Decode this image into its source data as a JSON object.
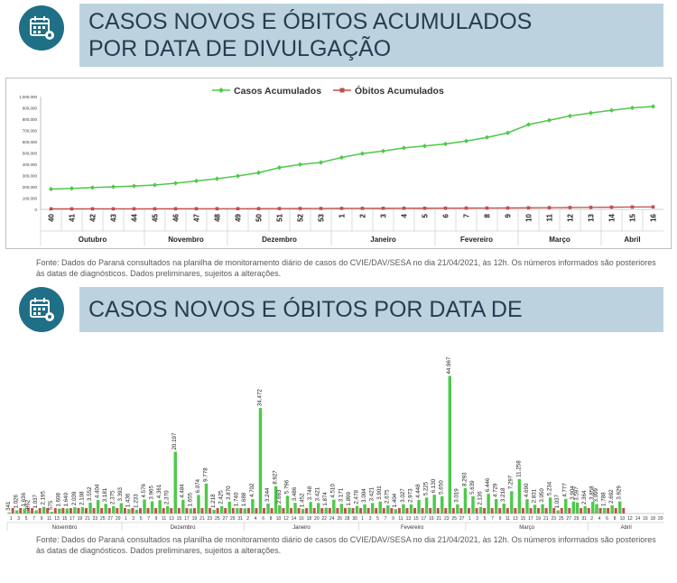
{
  "section1": {
    "title_line1": "CASOS NOVOS E ÓBITOS ACUMULADOS",
    "title_line2": "POR DATA DE DIVULGAÇÃO",
    "source_note": "Fonte: Dados do Paraná consultados na planilha de monitoramento diário de casos do CVIE/DAV/SESA no dia 21/04/2021, às 12h. Os números informados são posteriores às datas de diagnósticos. Dados preliminares, sujeitos a alterações."
  },
  "section2": {
    "title": "CASOS NOVOS E ÓBITOS POR DATA DE DIVULGAÇÃO",
    "source_note": "Fonte: Dados do Paraná consultados na planilha de monitoramento diário de casos do CVIE/DAV/SESA no dia 21/04/2021, às 12h. Os números informados são posteriores às datas de diagnósticos. Dados preliminares, sujeitos a alterações."
  },
  "colors": {
    "cases": "#4ec94a",
    "deaths": "#c0504d",
    "title_bg": "#bcd3df",
    "icon_bg": "#1f6f86"
  },
  "icons": [
    "calendar-virus-icon",
    "calendar-virus-icon"
  ],
  "chart_data": [
    {
      "type": "line",
      "x": [
        "40",
        "41",
        "42",
        "43",
        "44",
        "45",
        "46",
        "47",
        "48",
        "49",
        "50",
        "51",
        "52",
        "53",
        "1",
        "2",
        "3",
        "4",
        "5",
        "6",
        "7",
        "8",
        "9",
        "10",
        "11",
        "12",
        "13",
        "14",
        "15",
        "16"
      ],
      "groups": [
        {
          "label": "Outubro",
          "span": [
            0,
            4
          ]
        },
        {
          "label": "Novembro",
          "span": [
            5,
            8
          ]
        },
        {
          "label": "Dezembro",
          "span": [
            9,
            13
          ]
        },
        {
          "label": "Janeiro",
          "span": [
            14,
            18
          ]
        },
        {
          "label": "Fevereiro",
          "span": [
            19,
            22
          ]
        },
        {
          "label": "Março",
          "span": [
            23,
            26
          ]
        },
        {
          "label": "Abril",
          "span": [
            27,
            29
          ]
        }
      ],
      "series": [
        {
          "name": "Casos Acumulados",
          "values": [
            180000,
            186000,
            193000,
            200000,
            207000,
            216000,
            232000,
            252000,
            272000,
            296000,
            325000,
            370000,
            398000,
            416000,
            460000,
            495000,
            517000,
            545000,
            562000,
            580000,
            606000,
            638000,
            678000,
            752000,
            790000,
            828000,
            855000,
            878000,
            900000,
            912000
          ]
        },
        {
          "name": "Óbitos Acumulados",
          "values": [
            4400,
            4600,
            4800,
            5000,
            5100,
            5300,
            5500,
            5800,
            6000,
            6300,
            6700,
            7200,
            7700,
            8100,
            8700,
            9200,
            9600,
            10100,
            10500,
            10900,
            11400,
            11900,
            12500,
            13600,
            15100,
            16600,
            18100,
            19600,
            21000,
            22000
          ]
        }
      ],
      "yticks": [
        "0",
        "100,000",
        "200,000",
        "300,000",
        "400,000",
        "500,000",
        "600,000",
        "700,000",
        "800,000",
        "900,000",
        "1,000,000"
      ],
      "ylim": [
        0,
        1000000
      ],
      "legend": "top-center",
      "grid": false
    },
    {
      "type": "bar",
      "labeled_cases": [
        {
          "i": 0,
          "value": "341"
        },
        {
          "i": 2,
          "value": "1.026"
        },
        {
          "i": 4,
          "value": "1.636"
        },
        {
          "i": 5,
          "value": "862"
        },
        {
          "i": 7,
          "value": "1.037"
        },
        {
          "i": 9,
          "value": "2.195"
        },
        {
          "i": 11,
          "value": "575"
        },
        {
          "i": 13,
          "value": "1.608"
        },
        {
          "i": 15,
          "value": "1.640"
        },
        {
          "i": 17,
          "value": "2.039"
        },
        {
          "i": 19,
          "value": "2.108"
        },
        {
          "i": 21,
          "value": "3.552"
        },
        {
          "i": 23,
          "value": "4.404"
        },
        {
          "i": 25,
          "value": "3.181"
        },
        {
          "i": 27,
          "value": "2.375"
        },
        {
          "i": 29,
          "value": "3.393"
        },
        {
          "i": 31,
          "value": "1.436"
        },
        {
          "i": 33,
          "value": "1.233"
        },
        {
          "i": 35,
          "value": "4.576"
        },
        {
          "i": 37,
          "value": "3.965"
        },
        {
          "i": 39,
          "value": "4.361"
        },
        {
          "i": 41,
          "value": "2.370"
        },
        {
          "i": 43,
          "value": "20.197"
        },
        {
          "i": 45,
          "value": "4.484"
        },
        {
          "i": 47,
          "value": "1.655"
        },
        {
          "i": 49,
          "value": "6.074"
        },
        {
          "i": 51,
          "value": "9.778"
        },
        {
          "i": 53,
          "value": "1.218"
        },
        {
          "i": 55,
          "value": "2.425"
        },
        {
          "i": 57,
          "value": "3.870"
        },
        {
          "i": 59,
          "value": "1.740"
        },
        {
          "i": 61,
          "value": "1.688"
        },
        {
          "i": 63,
          "value": "4.702"
        },
        {
          "i": 65,
          "value": "34.472"
        },
        {
          "i": 67,
          "value": "3.244"
        },
        {
          "i": 69,
          "value": "8.927"
        },
        {
          "i": 70,
          "value": "2.663"
        },
        {
          "i": 72,
          "value": "5.796"
        },
        {
          "i": 74,
          "value": "3.486"
        },
        {
          "i": 76,
          "value": "1.452"
        },
        {
          "i": 78,
          "value": "3.748"
        },
        {
          "i": 80,
          "value": "3.421"
        },
        {
          "i": 82,
          "value": "1.874"
        },
        {
          "i": 84,
          "value": "4.510"
        },
        {
          "i": 86,
          "value": "3.171"
        },
        {
          "i": 88,
          "value": "1.899"
        },
        {
          "i": 90,
          "value": "2.478"
        },
        {
          "i": 92,
          "value": "3.004"
        },
        {
          "i": 94,
          "value": "3.421"
        },
        {
          "i": 96,
          "value": "3.901"
        },
        {
          "i": 98,
          "value": "2.675"
        },
        {
          "i": 100,
          "value": "1.404"
        },
        {
          "i": 102,
          "value": "3.027"
        },
        {
          "i": 104,
          "value": "2.973"
        },
        {
          "i": 106,
          "value": "4.448"
        },
        {
          "i": 108,
          "value": "5.225"
        },
        {
          "i": 110,
          "value": "6.130"
        },
        {
          "i": 112,
          "value": "5.650"
        },
        {
          "i": 114,
          "value": "44.967"
        },
        {
          "i": 116,
          "value": "3.019"
        },
        {
          "i": 118,
          "value": "8.293"
        },
        {
          "i": 120,
          "value": "5.639"
        },
        {
          "i": 122,
          "value": "2.136"
        },
        {
          "i": 124,
          "value": "6.446"
        },
        {
          "i": 126,
          "value": "4.729"
        },
        {
          "i": 128,
          "value": "3.218"
        },
        {
          "i": 130,
          "value": "7.297"
        },
        {
          "i": 132,
          "value": "11.258"
        },
        {
          "i": 134,
          "value": "4.690"
        },
        {
          "i": 136,
          "value": "2.831"
        },
        {
          "i": 138,
          "value": "3.050"
        },
        {
          "i": 140,
          "value": "5.234"
        },
        {
          "i": 142,
          "value": "1.037"
        },
        {
          "i": 144,
          "value": "4.777"
        },
        {
          "i": 146,
          "value": "3.904"
        },
        {
          "i": 147,
          "value": "3.597"
        },
        {
          "i": 149,
          "value": "2.364"
        },
        {
          "i": 151,
          "value": "3.858"
        },
        {
          "i": 152,
          "value": "3.099"
        },
        {
          "i": 154,
          "value": "1.788"
        },
        {
          "i": 156,
          "value": "2.692"
        },
        {
          "i": 158,
          "value": "3.929"
        }
      ],
      "tick_labels": [
        "1",
        "3",
        "5",
        "7",
        "9",
        "11",
        "13",
        "15",
        "17",
        "19",
        "21",
        "23",
        "25",
        "27",
        "29",
        "1",
        "3",
        "5",
        "7",
        "9",
        "11",
        "13",
        "15",
        "17",
        "19",
        "21",
        "23",
        "25",
        "27",
        "29",
        "31",
        "2",
        "4",
        "6",
        "8",
        "10",
        "12",
        "14",
        "16",
        "18",
        "20",
        "22",
        "24",
        "26",
        "28",
        "30",
        "1",
        "3",
        "5",
        "7",
        "9",
        "11",
        "13",
        "15",
        "17",
        "19",
        "21",
        "23",
        "25",
        "27",
        "1",
        "3",
        "5",
        "7",
        "9",
        "11",
        "13",
        "15",
        "17",
        "19",
        "21",
        "23",
        "25",
        "27",
        "29",
        "31",
        "2",
        "4",
        "6",
        "8",
        "10",
        "12",
        "14",
        "16",
        "18",
        "20"
      ],
      "months": [
        {
          "label": "Novembro",
          "start": 0,
          "end": 14
        },
        {
          "label": "Dezembro",
          "start": 15,
          "end": 30
        },
        {
          "label": "Janeiro",
          "start": 31,
          "end": 45
        },
        {
          "label": "Fevereiro",
          "start": 46,
          "end": 59
        },
        {
          "label": "Março",
          "start": 60,
          "end": 75
        },
        {
          "label": "Abril",
          "start": 76,
          "end": 85
        }
      ],
      "ylim": [
        0,
        46000
      ],
      "grid": false
    }
  ]
}
